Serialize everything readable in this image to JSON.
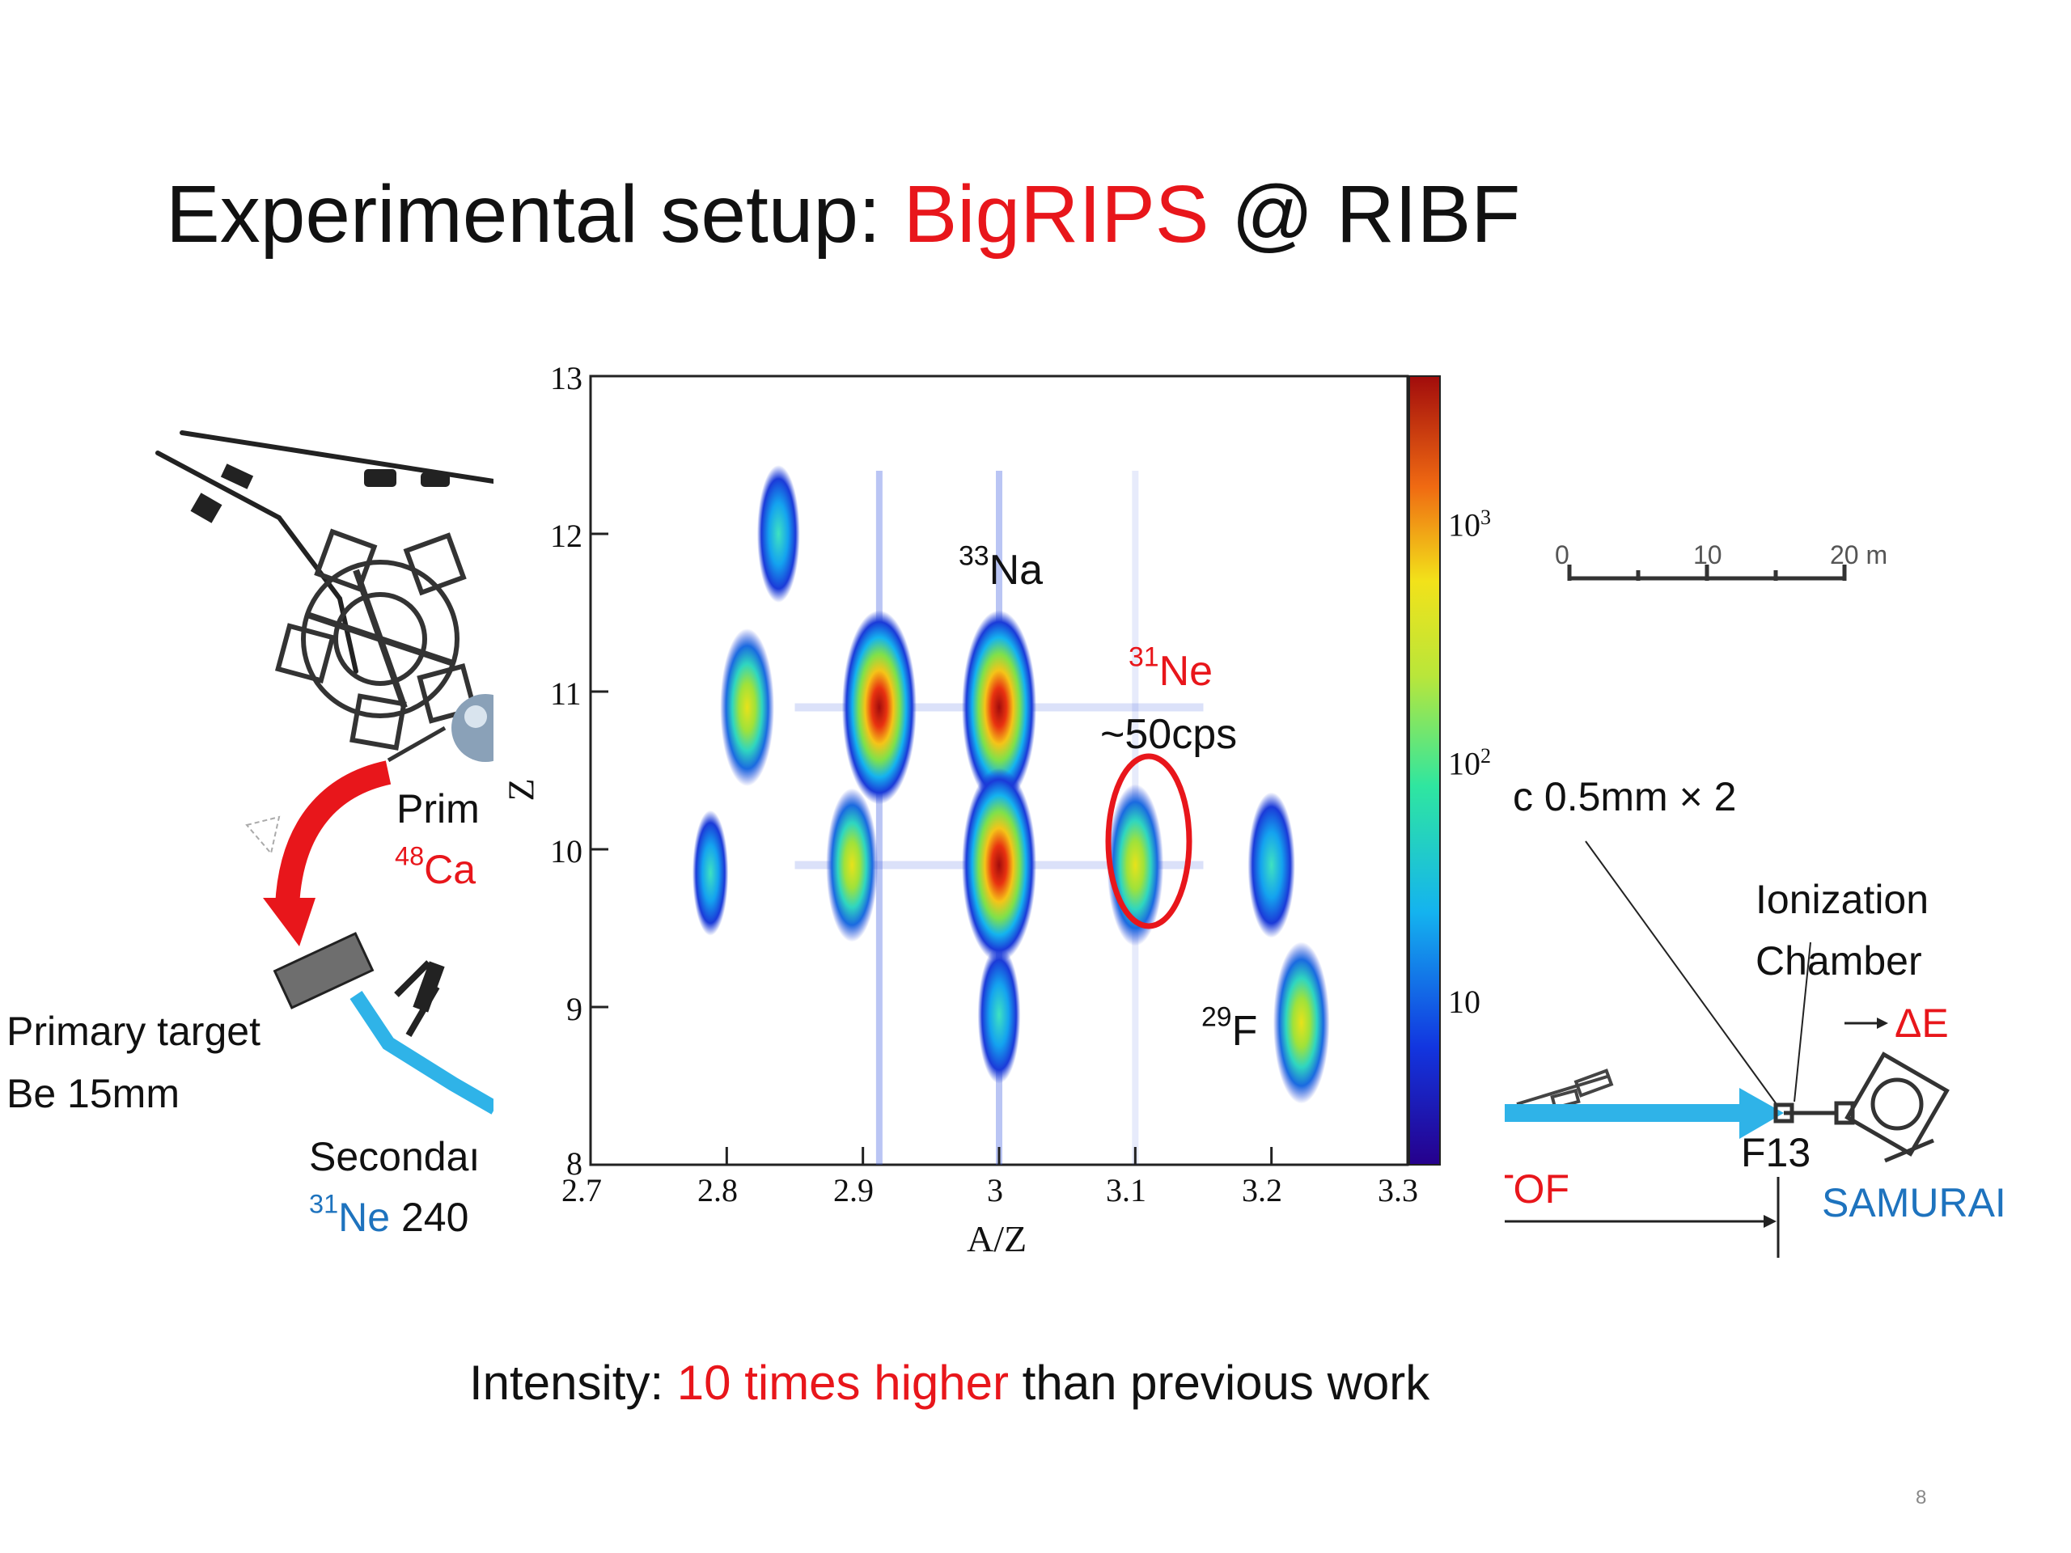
{
  "title": {
    "prefix": "Experimental setup: ",
    "highlight": "BigRIPS",
    "suffix": " @ RIBF"
  },
  "beamline_left": {
    "primary_beam_label": "Prim",
    "primary_beam_isotope_mass": "48",
    "primary_beam_isotope_symbol": "Ca",
    "primary_target_line1": "Primary target",
    "primary_target_line2": "Be 15mm",
    "secondary_label": "Secondaı",
    "secondary_isotope_mass": "31",
    "secondary_isotope_symbol": "Ne",
    "secondary_energy": " 240"
  },
  "beamline_right": {
    "scale_ticks": [
      "0",
      "10",
      "20 m"
    ],
    "target_label": "c 0.5mm × 2",
    "chamber_line1": "Ionization",
    "chamber_line2": "Chamber",
    "delta_e": "ΔE",
    "tof_label": "TOF",
    "f13_label": "F13",
    "samurai_label": "SAMURAI"
  },
  "chart_data": {
    "type": "heatmap",
    "xlabel": "A/Z",
    "ylabel": "Z",
    "xlim": [
      2.7,
      3.3
    ],
    "ylim": [
      8,
      13
    ],
    "x_ticks": [
      "2.7",
      "2.8",
      "2.9",
      "3",
      "3.1",
      "3.2",
      "3.3"
    ],
    "y_ticks": [
      "8",
      "9",
      "10",
      "11",
      "12",
      "13"
    ],
    "colorbar_scale": "log",
    "colorbar_ticks": [
      "10",
      "10²",
      "10³"
    ],
    "colorbar_ticks_mantissa": [
      "10",
      "10",
      "10"
    ],
    "colorbar_ticks_exponent": [
      "",
      "2",
      "3"
    ],
    "clusters": [
      {
        "az": 2.838,
        "z": 12.0,
        "intensity": 0.3
      },
      {
        "az": 2.815,
        "z": 10.9,
        "intensity": 0.55
      },
      {
        "az": 2.912,
        "z": 10.9,
        "intensity": 1.0
      },
      {
        "az": 3.0,
        "z": 10.9,
        "intensity": 1.0
      },
      {
        "az": 2.788,
        "z": 9.85,
        "intensity": 0.15
      },
      {
        "az": 2.892,
        "z": 9.9,
        "intensity": 0.5
      },
      {
        "az": 3.0,
        "z": 9.9,
        "intensity": 1.0
      },
      {
        "az": 3.1,
        "z": 9.9,
        "intensity": 0.6
      },
      {
        "az": 3.2,
        "z": 9.9,
        "intensity": 0.4
      },
      {
        "az": 3.222,
        "z": 8.9,
        "intensity": 0.6
      },
      {
        "az": 3.0,
        "z": 8.95,
        "intensity": 0.3
      }
    ],
    "annotations": {
      "na33_mass": "33",
      "na33_symbol": "Na",
      "ne31_mass": "31",
      "ne31_symbol": "Ne",
      "ne31_rate": "~50cps",
      "f29_mass": "29",
      "f29_symbol": "F"
    }
  },
  "footer": {
    "prefix": "Intensity: ",
    "highlight": "10 times higher",
    "suffix": " than previous work"
  },
  "page_number": "8"
}
